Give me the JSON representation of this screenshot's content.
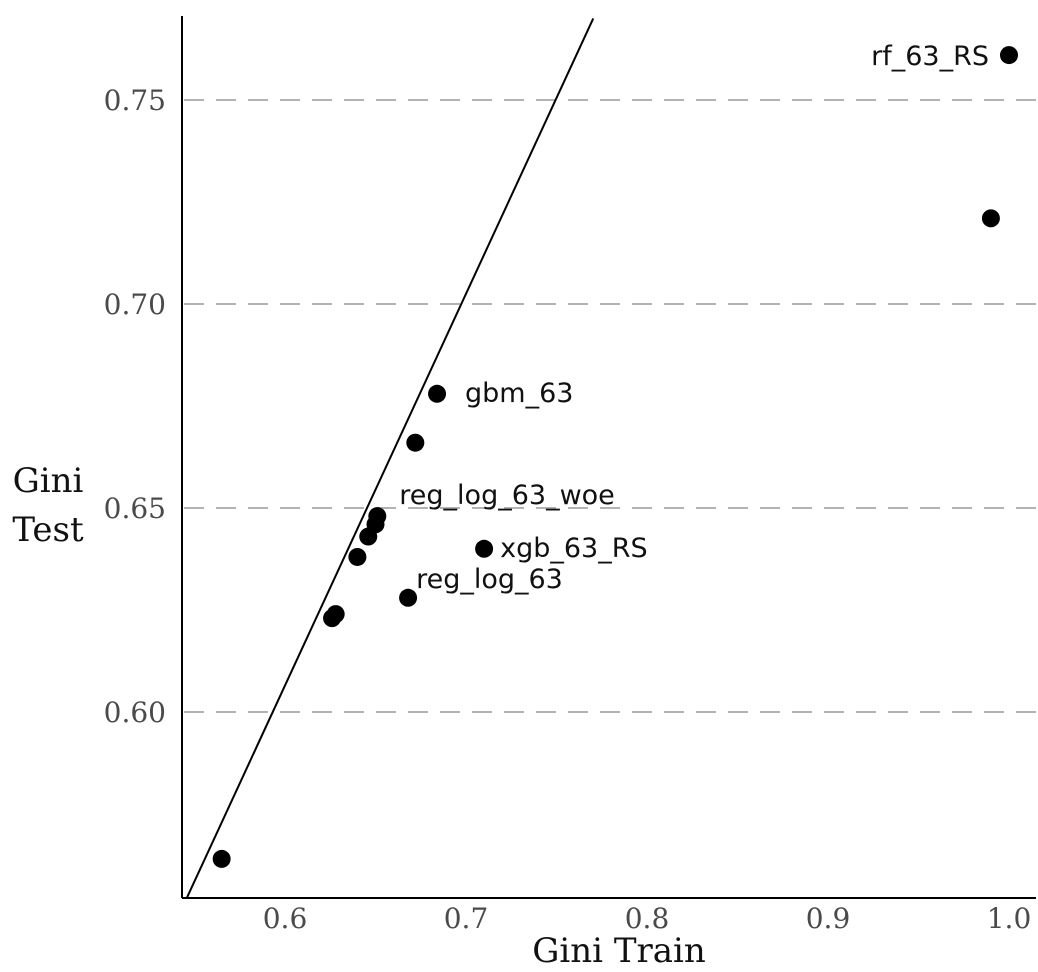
{
  "chart_data": {
    "type": "scatter",
    "title": "",
    "xlabel": "Gini Train",
    "ylabel_lines": [
      "Gini",
      "Test"
    ],
    "xlim": [
      0.55,
      1.01
    ],
    "ylim": [
      0.56,
      0.77
    ],
    "x_ticks": [
      {
        "value": 0.6,
        "label": "0.6"
      },
      {
        "value": 0.7,
        "label": "0.7"
      },
      {
        "value": 0.8,
        "label": "0.8"
      },
      {
        "value": 0.9,
        "label": "0.9"
      },
      {
        "value": 1.0,
        "label": "1.0"
      }
    ],
    "y_ticks": [
      {
        "value": 0.6,
        "label": "0.60"
      },
      {
        "value": 0.65,
        "label": "0.65"
      },
      {
        "value": 0.7,
        "label": "0.70"
      },
      {
        "value": 0.75,
        "label": "0.75"
      }
    ],
    "grid": {
      "horizontal": "dashed",
      "vertical": "none"
    },
    "reference_line": {
      "slope": 0.96,
      "intercept": 0.0305
    },
    "points": [
      {
        "x": 0.565,
        "y": 0.564,
        "label": ""
      },
      {
        "x": 0.626,
        "y": 0.623,
        "label": ""
      },
      {
        "x": 0.628,
        "y": 0.624,
        "label": ""
      },
      {
        "x": 0.64,
        "y": 0.638,
        "label": ""
      },
      {
        "x": 0.646,
        "y": 0.643,
        "label": ""
      },
      {
        "x": 0.65,
        "y": 0.646,
        "label": ""
      },
      {
        "x": 0.651,
        "y": 0.648,
        "label": "reg_log_63_woe"
      },
      {
        "x": 0.668,
        "y": 0.628,
        "label": "reg_log_63"
      },
      {
        "x": 0.672,
        "y": 0.666,
        "label": ""
      },
      {
        "x": 0.684,
        "y": 0.678,
        "label": "gbm_63"
      },
      {
        "x": 0.71,
        "y": 0.64,
        "label": "xgb_63_RS"
      },
      {
        "x": 0.99,
        "y": 0.721,
        "label": ""
      },
      {
        "x": 1.0,
        "y": 0.761,
        "label": "rf_63_RS"
      }
    ],
    "colors": {
      "points": "#000000",
      "grid": "#b3b3b3",
      "axis": "#000000",
      "line": "#000000"
    }
  }
}
